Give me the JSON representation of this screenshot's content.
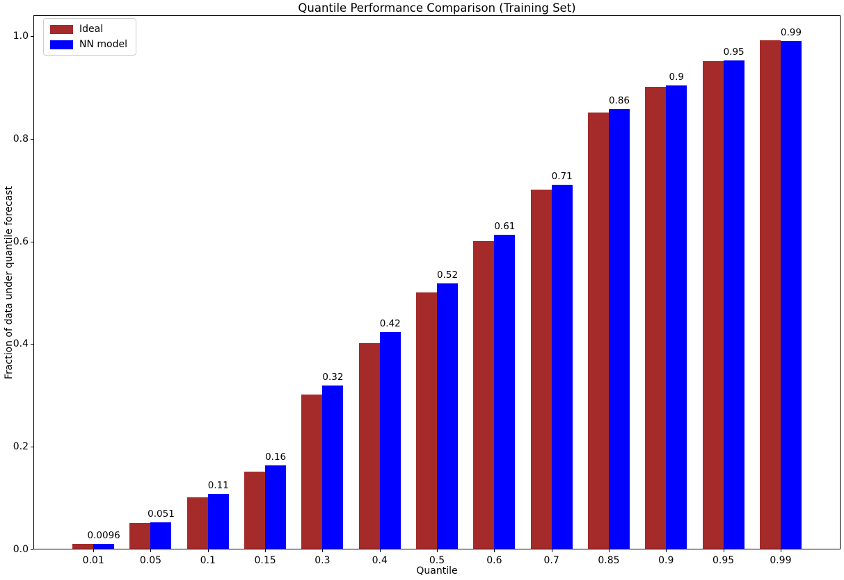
{
  "chart_data": {
    "type": "bar",
    "title": "Quantile Performance Comparison (Training Set)",
    "xlabel": "Quantile",
    "ylabel": "Fraction of data under quantile forecast",
    "categories": [
      "0.01",
      "0.05",
      "0.1",
      "0.15",
      "0.3",
      "0.4",
      "0.5",
      "0.6",
      "0.7",
      "0.85",
      "0.9",
      "0.95",
      "0.99"
    ],
    "series": [
      {
        "name": "Ideal",
        "color": "#a52a2a",
        "values": [
          0.01,
          0.05,
          0.1,
          0.15,
          0.3,
          0.4,
          0.5,
          0.6,
          0.7,
          0.85,
          0.9,
          0.95,
          0.99
        ]
      },
      {
        "name": "NN model",
        "color": "#0000ff",
        "values": [
          0.0096,
          0.051,
          0.107,
          0.163,
          0.318,
          0.422,
          0.517,
          0.611,
          0.709,
          0.857,
          0.903,
          0.951,
          0.989
        ],
        "bar_labels": [
          "0.0096",
          "0.051",
          "0.11",
          "0.16",
          "0.32",
          "0.42",
          "0.52",
          "0.61",
          "0.71",
          "0.86",
          "0.9",
          "0.95",
          "0.99"
        ]
      }
    ],
    "ylim": [
      0,
      1.04
    ],
    "yticks": [
      "0.0",
      "0.2",
      "0.4",
      "0.6",
      "0.8",
      "1.0"
    ],
    "legend_position": "upper left",
    "grid": false,
    "background": "#ffffff"
  }
}
